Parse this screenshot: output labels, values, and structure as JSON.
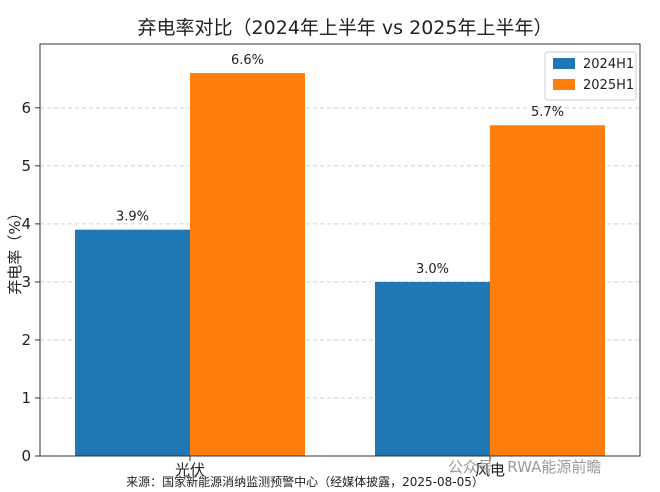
{
  "chart_data": {
    "type": "bar",
    "title": "弃电率对比（2024年上半年 vs 2025年上半年）",
    "xlabel": "",
    "ylabel": "弃电率（%）",
    "categories": [
      "光伏",
      "风电"
    ],
    "series": [
      {
        "name": "2024H1",
        "values": [
          3.9,
          3.0
        ],
        "labels": [
          "3.9%",
          "3.0%"
        ],
        "color": "#1f77b4"
      },
      {
        "name": "2025H1",
        "values": [
          6.6,
          5.7
        ],
        "labels": [
          "6.6%",
          "5.7%"
        ],
        "color": "#ff7f0e"
      }
    ],
    "ylim": [
      0,
      7.1
    ],
    "yticks": [
      0,
      1,
      2,
      3,
      4,
      5,
      6
    ],
    "grid": true,
    "legend": "top-right"
  },
  "source_note": "来源：国家新能源消纳监测预警中心（经媒体披露，2025-08-05）",
  "watermark": "公众号 · RWA能源前瞻"
}
